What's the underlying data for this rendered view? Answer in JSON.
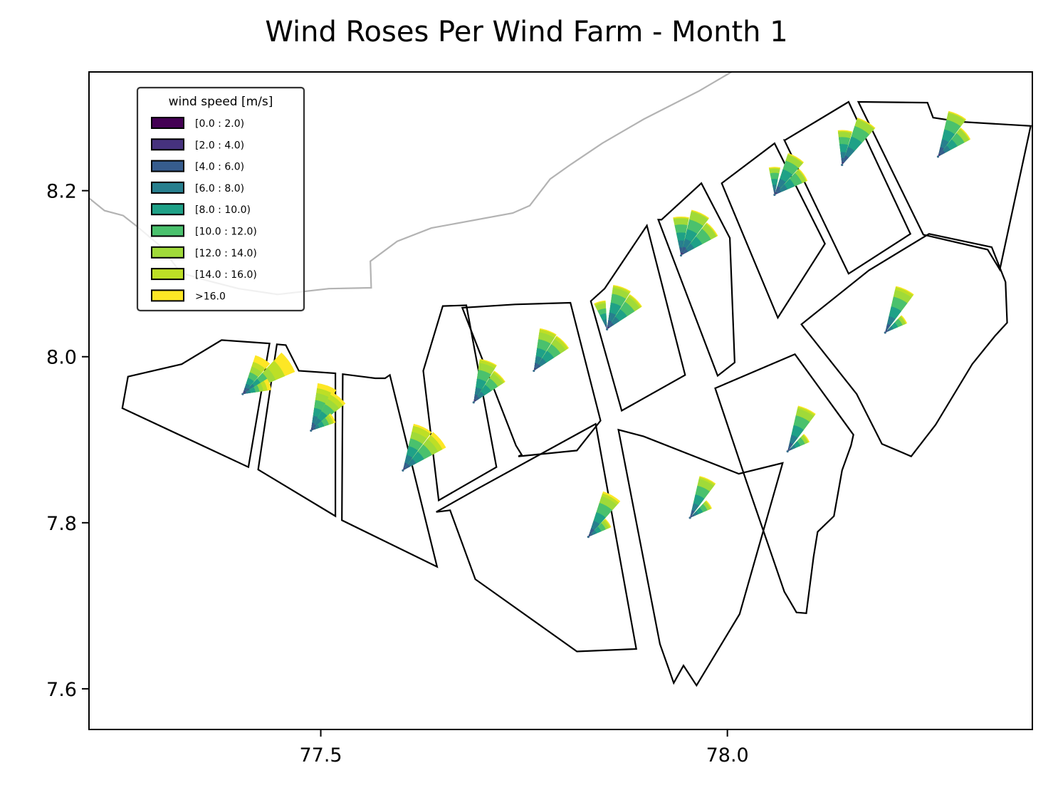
{
  "chart_data": {
    "type": "wind-rose-map",
    "title": "Wind Roses Per Wind Farm - Month 1",
    "xlabel": "",
    "ylabel": "",
    "xlim": [
      77.215,
      78.375
    ],
    "ylim": [
      7.551,
      8.343
    ],
    "x_ticks": [
      {
        "value": 77.5,
        "label": "77.5"
      },
      {
        "value": 78.0,
        "label": "78.0"
      }
    ],
    "y_ticks": [
      {
        "value": 7.6,
        "label": "7.6"
      },
      {
        "value": 7.8,
        "label": "7.8"
      },
      {
        "value": 8.0,
        "label": "8.0"
      },
      {
        "value": 8.2,
        "label": "8.2"
      }
    ],
    "grid": false,
    "legend": {
      "title": "wind speed [m/s]",
      "placement": "upper-left",
      "bins": [
        {
          "label": "[0.0 : 2.0)",
          "color": "#440154"
        },
        {
          "label": "[2.0 : 4.0)",
          "color": "#46327e"
        },
        {
          "label": "[4.0 : 6.0)",
          "color": "#365c8d"
        },
        {
          "label": "[6.0 : 8.0)",
          "color": "#277f8e"
        },
        {
          "label": "[8.0 : 10.0)",
          "color": "#1fa187"
        },
        {
          "label": "[10.0 : 12.0)",
          "color": "#4ac16d"
        },
        {
          "label": "[12.0 : 14.0)",
          "color": "#a0da39"
        },
        {
          "label": "[14.0 : 16.0)",
          "color": "#bddf26"
        },
        {
          "label": ">16.0",
          "color": "#fde725"
        }
      ]
    },
    "coastline": [
      [
        77.215,
        8.191
      ],
      [
        77.234,
        8.176
      ],
      [
        77.257,
        8.17
      ],
      [
        77.274,
        8.157
      ],
      [
        77.302,
        8.134
      ],
      [
        77.328,
        8.101
      ],
      [
        77.359,
        8.092
      ],
      [
        77.399,
        8.082
      ],
      [
        77.447,
        8.075
      ],
      [
        77.51,
        8.082
      ],
      [
        77.562,
        8.083
      ],
      [
        77.561,
        8.115
      ],
      [
        77.594,
        8.139
      ],
      [
        77.636,
        8.155
      ],
      [
        77.736,
        8.173
      ],
      [
        77.757,
        8.182
      ],
      [
        77.782,
        8.214
      ],
      [
        77.808,
        8.232
      ],
      [
        77.846,
        8.257
      ],
      [
        77.897,
        8.286
      ],
      [
        77.965,
        8.32
      ],
      [
        78.005,
        8.343
      ]
    ],
    "farms": [
      {
        "polygon": [
          [
            77.263,
            7.976
          ],
          [
            77.329,
            7.991
          ],
          [
            77.378,
            8.02
          ],
          [
            77.437,
            8.016
          ],
          [
            77.411,
            7.867
          ],
          [
            77.256,
            7.938
          ]
        ]
      },
      {
        "polygon": [
          [
            77.446,
            8.015
          ],
          [
            77.457,
            8.014
          ],
          [
            77.473,
            7.983
          ],
          [
            77.518,
            7.98
          ],
          [
            77.518,
            7.808
          ],
          [
            77.423,
            7.864
          ]
        ]
      },
      {
        "polygon": [
          [
            77.527,
            7.979
          ],
          [
            77.567,
            7.974
          ],
          [
            77.579,
            7.974
          ],
          [
            77.585,
            7.978
          ],
          [
            77.643,
            7.747
          ],
          [
            77.526,
            7.803
          ]
        ]
      },
      {
        "polygon": [
          [
            77.65,
            8.061
          ],
          [
            77.679,
            8.062
          ],
          [
            77.716,
            7.867
          ],
          [
            77.645,
            7.827
          ],
          [
            77.626,
            7.983
          ]
        ]
      },
      {
        "polygon": [
          [
            77.739,
            8.063
          ],
          [
            77.807,
            8.065
          ],
          [
            77.844,
            7.923
          ],
          [
            77.815,
            7.887
          ],
          [
            77.743,
            7.88
          ],
          [
            77.747,
            7.882
          ],
          [
            77.74,
            7.893
          ],
          [
            77.674,
            8.059
          ]
        ]
      },
      {
        "polygon": [
          [
            77.901,
            8.158
          ],
          [
            77.849,
            8.082
          ],
          [
            77.832,
            8.067
          ],
          [
            77.87,
            7.935
          ],
          [
            77.948,
            7.978
          ]
        ]
      },
      {
        "polygon": [
          [
            77.919,
            8.165
          ],
          [
            77.968,
            8.209
          ],
          [
            78.003,
            8.143
          ],
          [
            78.009,
            7.993
          ],
          [
            77.988,
            7.977
          ],
          [
            77.915,
            8.165
          ]
        ]
      },
      {
        "polygon": [
          [
            77.993,
            8.209
          ],
          [
            78.058,
            8.257
          ],
          [
            78.12,
            8.136
          ],
          [
            78.062,
            8.047
          ],
          [
            77.993,
            8.209
          ]
        ]
      },
      {
        "polygon": [
          [
            78.071,
            8.261
          ],
          [
            78.149,
            8.307
          ],
          [
            78.225,
            8.148
          ],
          [
            78.149,
            8.1
          ],
          [
            78.07,
            8.261
          ]
        ]
      },
      {
        "polygon": [
          [
            78.161,
            8.307
          ],
          [
            78.246,
            8.306
          ],
          [
            78.253,
            8.288
          ],
          [
            78.286,
            8.283
          ],
          [
            78.373,
            8.278
          ],
          [
            78.335,
            8.105
          ],
          [
            78.32,
            8.129
          ],
          [
            78.241,
            8.147
          ]
        ]
      },
      {
        "polygon": [
          [
            77.659,
            7.815
          ],
          [
            77.69,
            7.732
          ],
          [
            77.815,
            7.645
          ],
          [
            77.888,
            7.648
          ],
          [
            77.838,
            7.919
          ],
          [
            77.691,
            7.84
          ],
          [
            77.642,
            7.813
          ],
          [
            77.659,
            7.815
          ]
        ]
      },
      {
        "polygon": [
          [
            77.866,
            7.912
          ],
          [
            77.917,
            7.654
          ],
          [
            77.934,
            7.607
          ],
          [
            77.946,
            7.628
          ],
          [
            77.962,
            7.604
          ],
          [
            78.015,
            7.69
          ],
          [
            78.068,
            7.872
          ],
          [
            78.014,
            7.859
          ],
          [
            77.897,
            7.904
          ]
        ]
      },
      {
        "polygon": [
          [
            77.985,
            7.962
          ],
          [
            78.083,
            8.003
          ],
          [
            78.155,
            7.906
          ],
          [
            78.152,
            7.893
          ],
          [
            78.141,
            7.863
          ],
          [
            78.131,
            7.808
          ],
          [
            78.111,
            7.789
          ],
          [
            78.106,
            7.759
          ],
          [
            78.097,
            7.691
          ],
          [
            78.085,
            7.692
          ],
          [
            78.076,
            7.707
          ],
          [
            78.07,
            7.717
          ],
          [
            78.024,
            7.848
          ],
          [
            77.985,
            7.962
          ]
        ]
      },
      {
        "polygon": [
          [
            78.091,
            8.039
          ],
          [
            78.174,
            8.104
          ],
          [
            78.248,
            8.148
          ],
          [
            78.325,
            8.132
          ],
          [
            78.342,
            8.09
          ],
          [
            78.344,
            8.041
          ],
          [
            78.329,
            8.025
          ],
          [
            78.301,
            7.991
          ],
          [
            78.256,
            7.918
          ],
          [
            78.226,
            7.88
          ],
          [
            78.19,
            7.895
          ],
          [
            78.159,
            7.955
          ],
          [
            78.091,
            8.039
          ]
        ]
      }
    ],
    "roses": [
      {
        "x": 77.404,
        "y": 7.955,
        "sectors": [
          {
            "dir": 30,
            "bins": [
              0.0,
              0.3,
              0.7,
              1.1,
              1.7,
              2.3,
              2.9,
              3.4,
              4.1
            ]
          },
          {
            "dir": 55,
            "bins": [
              0.0,
              0.4,
              0.8,
              1.4,
              2.1,
              2.9,
              3.6,
              4.6,
              5.7
            ]
          },
          {
            "dir": 70,
            "bins": [
              0.0,
              0.2,
              0.4,
              0.8,
              1.3,
              1.7,
              2.1,
              2.5,
              2.9
            ]
          }
        ]
      },
      {
        "x": 77.488,
        "y": 7.911,
        "sectors": [
          {
            "dir": 20,
            "bins": [
              0.0,
              0.3,
              0.8,
              1.5,
              2.3,
              3.1,
              3.8,
              4.3,
              4.8
            ]
          },
          {
            "dir": 40,
            "bins": [
              0.0,
              0.3,
              0.7,
              1.4,
              2.2,
              3.0,
              3.6,
              4.1,
              4.4
            ]
          },
          {
            "dir": 60,
            "bins": [
              0.0,
              0.2,
              0.5,
              0.9,
              1.4,
              1.9,
              2.2,
              2.4,
              2.6
            ]
          }
        ]
      },
      {
        "x": 77.601,
        "y": 7.863,
        "sectors": [
          {
            "dir": 25,
            "bins": [
              0.0,
              0.3,
              0.8,
              1.6,
              2.5,
              3.3,
              4.0,
              4.6,
              4.8
            ]
          },
          {
            "dir": 50,
            "bins": [
              0.0,
              0.3,
              0.8,
              1.5,
              2.4,
              3.3,
              4.0,
              4.5,
              4.9
            ]
          }
        ]
      },
      {
        "x": 77.688,
        "y": 7.945,
        "sectors": [
          {
            "dir": 20,
            "bins": [
              0.0,
              0.3,
              0.8,
              1.5,
              2.4,
              3.3,
              4.0,
              4.3,
              4.4
            ]
          },
          {
            "dir": 45,
            "bins": [
              0.0,
              0.3,
              0.7,
              1.3,
              2.1,
              2.9,
              3.5,
              3.7,
              3.8
            ]
          }
        ]
      },
      {
        "x": 77.762,
        "y": 7.983,
        "sectors": [
          {
            "dir": 20,
            "bins": [
              0.0,
              0.3,
              0.8,
              1.5,
              2.3,
              3.2,
              3.9,
              4.2,
              4.3
            ]
          },
          {
            "dir": 45,
            "bins": [
              0.0,
              0.3,
              0.8,
              1.5,
              2.4,
              3.2,
              3.8,
              4.1,
              4.2
            ]
          }
        ]
      },
      {
        "x": 77.852,
        "y": 8.033,
        "sectors": [
          {
            "dir": 345,
            "bins": [
              0.0,
              0.2,
              0.5,
              1.0,
              1.6,
              2.1,
              2.6,
              2.8,
              2.9
            ]
          },
          {
            "dir": 20,
            "bins": [
              0.0,
              0.3,
              0.9,
              1.7,
              2.7,
              3.6,
              4.2,
              4.4,
              4.5
            ]
          },
          {
            "dir": 45,
            "bins": [
              0.0,
              0.3,
              0.8,
              1.5,
              2.4,
              3.3,
              3.9,
              4.1,
              4.2
            ]
          }
        ]
      },
      {
        "x": 77.943,
        "y": 8.122,
        "sectors": [
          {
            "dir": 0,
            "bins": [
              0.0,
              0.3,
              0.8,
              1.5,
              2.3,
              3.1,
              3.7,
              3.8,
              3.9
            ]
          },
          {
            "dir": 25,
            "bins": [
              0.0,
              0.3,
              0.9,
              1.7,
              2.7,
              3.7,
              4.5,
              4.6,
              4.7
            ]
          },
          {
            "dir": 50,
            "bins": [
              0.0,
              0.3,
              0.8,
              1.5,
              2.4,
              3.4,
              4.0,
              4.1,
              4.2
            ]
          }
        ]
      },
      {
        "x": 78.058,
        "y": 8.195,
        "sectors": [
          {
            "dir": 0,
            "bins": [
              0.0,
              0.2,
              0.5,
              1.0,
              1.6,
              2.2,
              2.6,
              2.7,
              2.8
            ]
          },
          {
            "dir": 30,
            "bins": [
              0.0,
              0.3,
              0.9,
              1.7,
              2.7,
              3.6,
              4.2,
              4.3,
              4.4
            ]
          },
          {
            "dir": 55,
            "bins": [
              0.0,
              0.3,
              0.7,
              1.4,
              2.2,
              3.0,
              3.4,
              3.5,
              3.6
            ]
          }
        ]
      },
      {
        "x": 78.141,
        "y": 8.231,
        "sectors": [
          {
            "dir": 5,
            "bins": [
              0.0,
              0.3,
              0.7,
              1.3,
              2.1,
              2.8,
              3.3,
              3.4,
              3.5
            ]
          },
          {
            "dir": 30,
            "bins": [
              0.0,
              0.3,
              1.0,
              1.9,
              3.0,
              4.1,
              4.8,
              4.9,
              5.0
            ]
          }
        ]
      },
      {
        "x": 78.259,
        "y": 8.241,
        "sectors": [
          {
            "dir": 25,
            "bins": [
              0.0,
              0.3,
              1.0,
              1.8,
              2.8,
              3.8,
              4.5,
              4.6,
              4.7
            ]
          },
          {
            "dir": 50,
            "bins": [
              0.0,
              0.3,
              0.8,
              1.4,
              2.2,
              3.0,
              3.5,
              3.6,
              3.7
            ]
          }
        ]
      },
      {
        "x": 77.829,
        "y": 7.783,
        "sectors": [
          {
            "dir": 30,
            "bins": [
              0.0,
              0.3,
              0.9,
              1.7,
              2.6,
              3.6,
              4.3,
              4.6,
              4.8
            ]
          },
          {
            "dir": 55,
            "bins": [
              0.0,
              0.2,
              0.5,
              0.9,
              1.4,
              1.9,
              2.2,
              2.4,
              2.5
            ]
          }
        ]
      },
      {
        "x": 77.954,
        "y": 7.806,
        "sectors": [
          {
            "dir": 25,
            "bins": [
              0.0,
              0.3,
              0.8,
              1.5,
              2.4,
              3.3,
              4.0,
              4.2,
              4.3
            ]
          },
          {
            "dir": 55,
            "bins": [
              0.0,
              0.2,
              0.5,
              0.9,
              1.4,
              1.9,
              2.2,
              2.3,
              2.4
            ]
          }
        ]
      },
      {
        "x": 78.074,
        "y": 7.886,
        "sectors": [
          {
            "dir": 25,
            "bins": [
              0.0,
              0.3,
              0.9,
              1.7,
              2.7,
              3.7,
              4.4,
              4.6,
              4.7
            ]
          },
          {
            "dir": 55,
            "bins": [
              0.0,
              0.2,
              0.5,
              0.9,
              1.4,
              1.9,
              2.2,
              2.3,
              2.4
            ]
          }
        ]
      },
      {
        "x": 78.194,
        "y": 8.029,
        "sectors": [
          {
            "dir": 25,
            "bins": [
              0.0,
              0.3,
              0.9,
              1.7,
              2.7,
              3.7,
              4.4,
              4.7,
              4.8
            ]
          },
          {
            "dir": 55,
            "bins": [
              0.0,
              0.2,
              0.5,
              0.9,
              1.4,
              1.9,
              2.2,
              2.3,
              2.4
            ]
          }
        ]
      }
    ]
  }
}
